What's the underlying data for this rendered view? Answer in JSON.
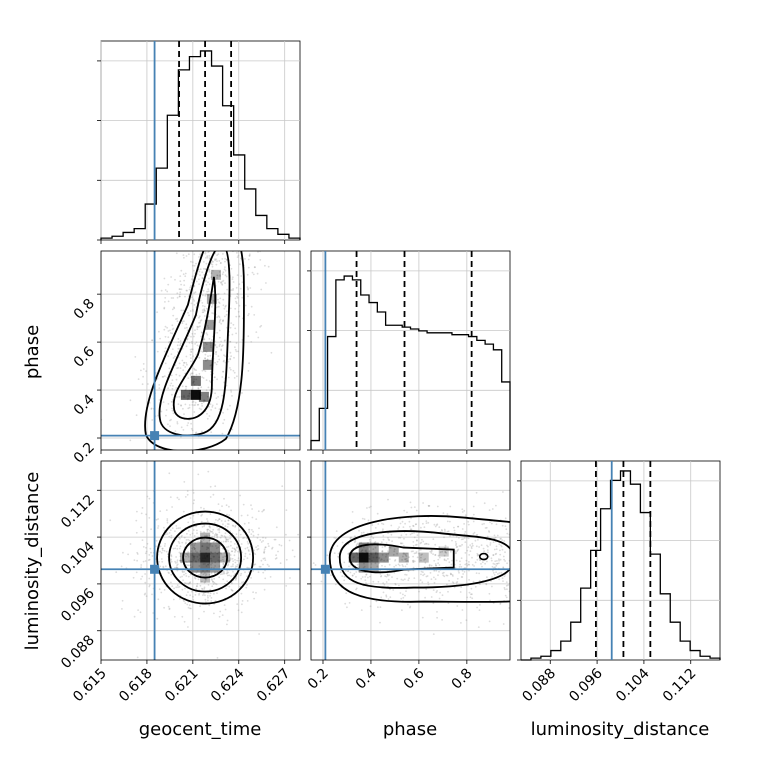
{
  "chart_data": {
    "type": "corner",
    "parameters": [
      "geocent_time",
      "phase",
      "luminosity_distance"
    ],
    "truths": {
      "geocent_time": 0.6185,
      "phase": 0.21,
      "luminosity_distance": 0.0985
    },
    "colors": {
      "truth": "#4682b4",
      "hist": "#000000",
      "grid": "#c8c8c8",
      "density": "#000000"
    },
    "grid": true,
    "ranges": {
      "geocent_time": [
        0.615,
        0.628
      ],
      "phase": [
        0.15,
        0.98
      ],
      "luminosity_distance": [
        0.083,
        0.117
      ]
    },
    "ticks": {
      "geocent_time": {
        "values": [
          0.615,
          0.618,
          0.621,
          0.624,
          0.627
        ],
        "labels": [
          "0.615",
          "0.618",
          "0.621",
          "0.624",
          "0.627"
        ]
      },
      "phase": {
        "values": [
          0.2,
          0.4,
          0.6,
          0.8
        ],
        "labels": [
          "0.2",
          "0.4",
          "0.6",
          "0.8"
        ]
      },
      "luminosity_distance": {
        "values": [
          0.088,
          0.096,
          0.104,
          0.112
        ],
        "labels": [
          "0.088",
          "0.096",
          "0.104",
          "0.112"
        ]
      }
    },
    "quantiles": {
      "geocent_time": [
        0.6201,
        0.6218,
        0.6235
      ],
      "phase": [
        0.34,
        0.54,
        0.82
      ],
      "luminosity_distance": [
        0.0958,
        0.1005,
        0.1051
      ]
    },
    "histograms": {
      "geocent_time": [
        0.01,
        0.02,
        0.04,
        0.06,
        0.19,
        0.38,
        0.66,
        0.9,
        0.97,
        1.0,
        0.92,
        0.71,
        0.45,
        0.27,
        0.13,
        0.06,
        0.03,
        0.01
      ],
      "phase": [
        0.05,
        0.22,
        0.6,
        0.9,
        0.92,
        0.9,
        0.82,
        0.78,
        0.73,
        0.66,
        0.66,
        0.65,
        0.64,
        0.63,
        0.62,
        0.62,
        0.62,
        0.61,
        0.61,
        0.6,
        0.58,
        0.56,
        0.53,
        0.36
      ],
      "luminosity_distance": [
        0.0,
        0.01,
        0.02,
        0.05,
        0.1,
        0.2,
        0.38,
        0.58,
        0.8,
        0.95,
        1.0,
        0.93,
        0.78,
        0.56,
        0.35,
        0.2,
        0.1,
        0.05,
        0.02,
        0.01
      ]
    },
    "density_peaks": {
      "geocent_time|phase": {
        "center": [
          0.6212,
          0.38
        ]
      },
      "geocent_time|luminosity_distance": {
        "center": [
          0.6218,
          0.1005
        ]
      },
      "phase|luminosity_distance": {
        "center": [
          0.37,
          0.1005
        ]
      }
    },
    "axis_labels": {
      "x": [
        "geocent_time",
        "phase",
        "luminosity_distance"
      ],
      "y": [
        "phase",
        "luminosity_distance"
      ]
    }
  }
}
